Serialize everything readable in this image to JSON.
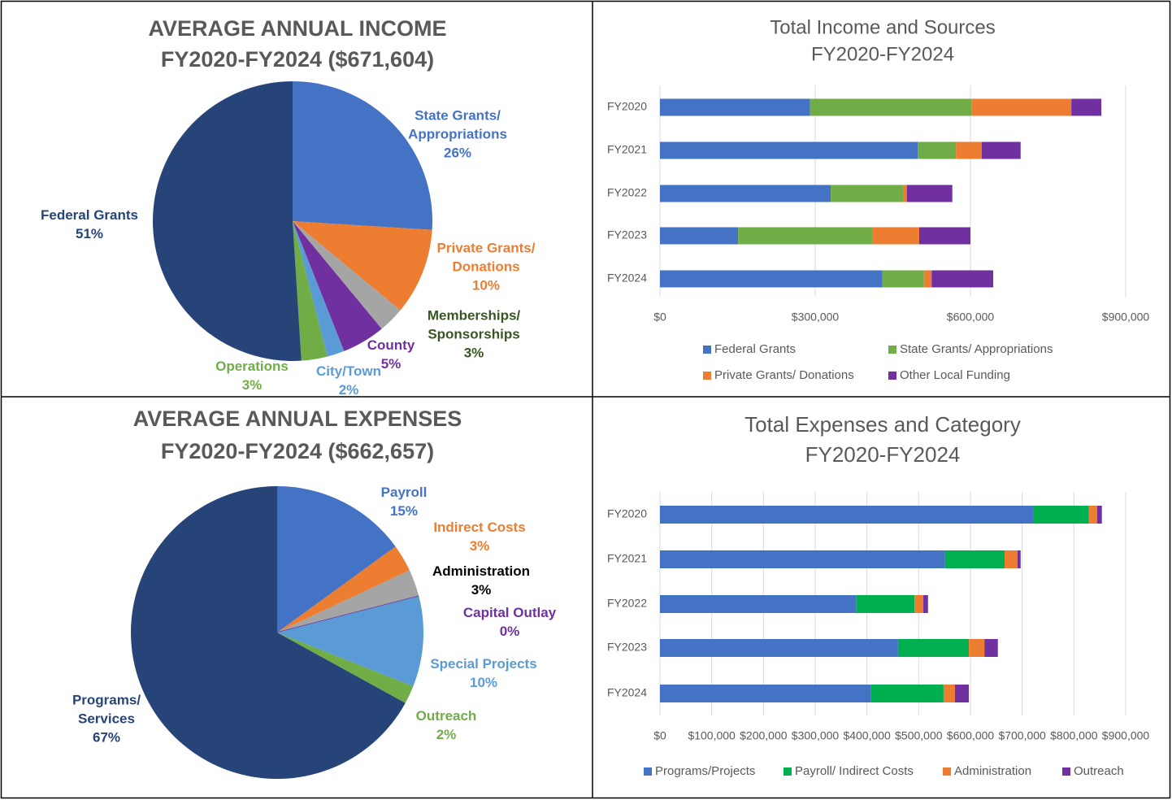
{
  "chart_data": [
    {
      "type": "pie",
      "title": "AVERAGE ANNUAL INCOME",
      "subtitle": "FY2020-FY2024 ($671,604)",
      "categories": [
        "State Grants/\nAppropriations",
        "Private Grants/\nDonations",
        "Memberships/\nSponsorships",
        "County",
        "City/Town",
        "Operations",
        "Federal Grants"
      ],
      "values": [
        26,
        10,
        3,
        5,
        2,
        3,
        51
      ],
      "value_labels": [
        "26%",
        "10%",
        "3%",
        "5%",
        "2%",
        "3%",
        "51%"
      ],
      "colors": [
        "#4472c4",
        "#ed7d31",
        "#a5a5a5",
        "#7030a0",
        "#5b9bd5",
        "#70ad47",
        "#264478"
      ],
      "label_colors": [
        "#4472c4",
        "#ed7d31",
        "#375623",
        "#7030a0",
        "#5b9bd5",
        "#70ad47",
        "#264478"
      ]
    },
    {
      "type": "bar",
      "orientation": "horizontal",
      "stacked": true,
      "title": "Total Income and Sources",
      "subtitle": "FY2020-FY2024",
      "categories": [
        "FY2020",
        "FY2021",
        "FY2022",
        "FY2023",
        "FY2024"
      ],
      "series": [
        {
          "name": "Federal Grants",
          "color": "#4472c4",
          "values": [
            290000,
            498000,
            330000,
            151000,
            430000
          ]
        },
        {
          "name": "State Grants/ Appropriations",
          "color": "#70ad47",
          "values": [
            312000,
            74000,
            141000,
            259000,
            80000
          ]
        },
        {
          "name": "Private Grants/ Donations",
          "color": "#ed7d31",
          "values": [
            193000,
            50000,
            6000,
            91000,
            15000
          ]
        },
        {
          "name": "Other Local Funding",
          "color": "#7030a0",
          "values": [
            58000,
            75000,
            88000,
            99000,
            119000
          ]
        }
      ],
      "xlim": [
        0,
        900000
      ],
      "xticks": [
        {
          "value": 0,
          "label": "$0"
        },
        {
          "value": 300000,
          "label": "$300,000"
        },
        {
          "value": 600000,
          "label": "$600,000"
        },
        {
          "value": 900000,
          "label": "$900,000"
        }
      ],
      "grid": true,
      "legend": "bottom"
    },
    {
      "type": "pie",
      "title": "AVERAGE ANNUAL EXPENSES",
      "subtitle": "FY2020-FY2024 ($662,657)",
      "categories": [
        "Payroll",
        "Indirect Costs",
        "Administration",
        "Capital Outlay",
        "Special Projects",
        "Outreach",
        "Programs/\nServices"
      ],
      "values": [
        15,
        3,
        3,
        0,
        10,
        2,
        67
      ],
      "value_labels": [
        "15%",
        "3%",
        "3%",
        "0%",
        "10%",
        "2%",
        "67%"
      ],
      "colors": [
        "#4472c4",
        "#ed7d31",
        "#a5a5a5",
        "#7030a0",
        "#5b9bd5",
        "#70ad47",
        "#264478"
      ],
      "label_colors": [
        "#4472c4",
        "#ed7d31",
        "#000000",
        "#7030a0",
        "#5b9bd5",
        "#70ad47",
        "#264478"
      ]
    },
    {
      "type": "bar",
      "orientation": "horizontal",
      "stacked": true,
      "title": "Total Expenses and Category",
      "subtitle": "FY2020-FY2024",
      "categories": [
        "FY2020",
        "FY2021",
        "FY2022",
        "FY2023",
        "FY2024"
      ],
      "series": [
        {
          "name": "Programs/Projects",
          "color": "#4472c4",
          "values": [
            721000,
            551000,
            379000,
            460000,
            408000
          ]
        },
        {
          "name": "Payroll/ Indirect Costs",
          "color": "#00b050",
          "values": [
            108000,
            115000,
            113000,
            137000,
            140000
          ]
        },
        {
          "name": "Administration",
          "color": "#ed7d31",
          "values": [
            16000,
            25000,
            17000,
            30000,
            22000
          ]
        },
        {
          "name": "Outreach",
          "color": "#7030a0",
          "values": [
            9000,
            6000,
            9000,
            26000,
            27000
          ]
        }
      ],
      "xlim": [
        0,
        900000
      ],
      "xticks": [
        {
          "value": 0,
          "label": "$0"
        },
        {
          "value": 100000,
          "label": "$100,000"
        },
        {
          "value": 200000,
          "label": "$200,000"
        },
        {
          "value": 300000,
          "label": "$300,000"
        },
        {
          "value": 400000,
          "label": "$400,000"
        },
        {
          "value": 500000,
          "label": "$500,000"
        },
        {
          "value": 600000,
          "label": "$600,000"
        },
        {
          "value": 700000,
          "label": "$700,000"
        },
        {
          "value": 800000,
          "label": "$800,000"
        },
        {
          "value": 900000,
          "label": "$900,000"
        }
      ],
      "grid": true,
      "legend": "bottom"
    }
  ]
}
